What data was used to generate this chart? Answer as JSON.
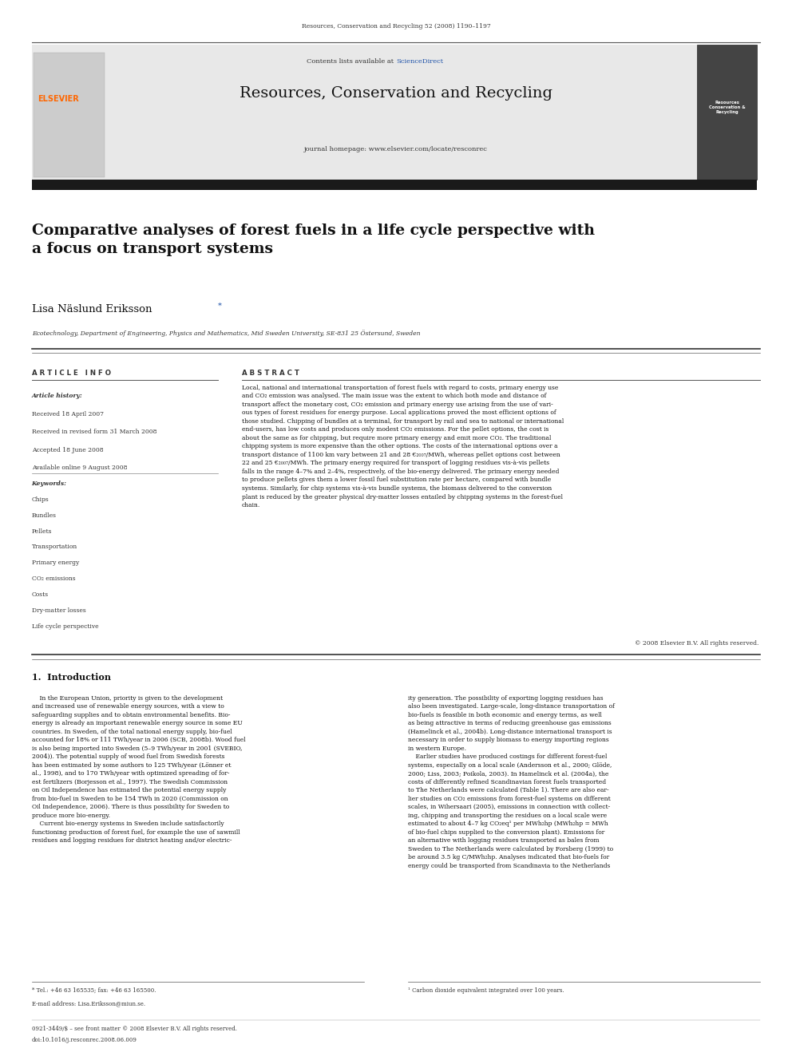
{
  "page_width": 9.92,
  "page_height": 13.23,
  "background_color": "#ffffff",
  "journal_ref": "Resources, Conservation and Recycling 52 (2008) 1190–1197",
  "header_bg": "#e8e8e8",
  "contents_text": "Contents lists available at ",
  "sciencedirect_text": "ScienceDirect",
  "sciencedirect_color": "#2255aa",
  "journal_title": "Resources, Conservation and Recycling",
  "journal_homepage": "journal homepage: www.elsevier.com/locate/resconrec",
  "elsevier_color": "#ff6600",
  "article_title": "Comparative analyses of forest fuels in a life cycle perspective with\na focus on transport systems",
  "author": "Lisa Näslund Eriksson",
  "author_star": "*",
  "affiliation": "Ecotechnology, Department of Engineering, Physics and Mathematics, Mid Sweden University, SE-831 25 Östersund, Sweden",
  "article_info_title": "A R T I C L E   I N F O",
  "abstract_title": "A B S T R A C T",
  "article_history_label": "Article history:",
  "received": "Received 18 April 2007",
  "revised": "Received in revised form 31 March 2008",
  "accepted": "Accepted 18 June 2008",
  "available": "Available online 9 August 2008",
  "keywords_label": "Keywords:",
  "keywords": [
    "Chips",
    "Bundles",
    "Pellets",
    "Transportation",
    "Primary energy",
    "CO₂ emissions",
    "Costs",
    "Dry-matter losses",
    "Life cycle perspective"
  ],
  "abstract_text": "Local, national and international transportation of forest fuels with regard to costs, primary energy use\nand CO₂ emission was analysed. The main issue was the extent to which both mode and distance of\ntransport affect the monetary cost, CO₂ emission and primary energy use arising from the use of vari-\nous types of forest residues for energy purpose. Local applications proved the most efficient options of\nthose studied. Chipping of bundles at a terminal, for transport by rail and sea to national or international\nend-users, has low costs and produces only modest CO₂ emissions. For the pellet options, the cost is\nabout the same as for chipping, but require more primary energy and emit more CO₂. The traditional\nchipping system is more expensive than the other options. The costs of the international options over a\ntransport distance of 1100 km vary between 21 and 28 €₂₀₀₇/MWh, whereas pellet options cost between\n22 and 25 €₂₀₀₇/MWh. The primary energy required for transport of logging residues vis-à-vis pellets\nfalls in the range 4–7% and 2–4%, respectively, of the bio-energy delivered. The primary energy needed\nto produce pellets gives them a lower fossil fuel substitution rate per hectare, compared with bundle\nsystems. Similarly, for chip systems vis-à-vis bundle systems, the biomass delivered to the conversion\nplant is reduced by the greater physical dry-matter losses entailed by chipping systems in the forest-fuel\nchain.",
  "copyright_text": "© 2008 Elsevier B.V. All rights reserved.",
  "section1_title": "1.  Introduction",
  "intro_col1": "    In the European Union, priority is given to the development\nand increased use of renewable energy sources, with a view to\nsafeguarding supplies and to obtain environmental benefits. Bio-\nenergy is already an important renewable energy source in some EU\ncountries. In Sweden, of the total national energy supply, bio-fuel\naccounted for 18% or 111 TWh/year in 2006 (SCB, 2008b). Wood fuel\nis also being imported into Sweden (5–9 TWh/year in 2001 (SVEBIO,\n2004)). The potential supply of wood fuel from Swedish forests\nhas been estimated by some authors to 125 TWh/year (Lönner et\nal., 1998), and to 170 TWh/year with optimized spreading of for-\nest fertilizers (Borjesson et al., 1997). The Swedish Commission\non Oil Independence has estimated the potential energy supply\nfrom bio-fuel in Sweden to be 154 TWh in 2020 (Commission on\nOil Independence, 2006). There is thus possibility for Sweden to\nproduce more bio-energy.\n    Current bio-energy systems in Sweden include satisfactorily\nfunctioning production of forest fuel, for example the use of sawmill\nresidues and logging residues for district heating and/or electric-",
  "intro_col2": "ity generation. The possibility of exporting logging residues has\nalso been investigated. Large-scale, long-distance transportation of\nbio-fuels is feasible in both economic and energy terms, as well\nas being attractive in terms of reducing greenhouse gas emissions\n(Hamelinck et al., 2004b). Long-distance international transport is\nnecessary in order to supply biomass to energy importing regions\nin western Europe.\n    Earlier studies have produced costings for different forest-fuel\nsystems, especially on a local scale (Andersson et al., 2000; Glöde,\n2000; Liss, 2003; Poikola, 2003). In Hamelinck et al. (2004a), the\ncosts of differently refined Scandinavian forest fuels transported\nto The Netherlands were calculated (Table 1). There are also ear-\nlier studies on CO₂ emissions from forest-fuel systems on different\nscales, in Wihersaari (2005), emissions in connection with collect-\ning, chipping and transporting the residues on a local scale were\nestimated to about 4–7 kg CO₂eq¹ per MWh₂hp (MWh₂hp = MWh\nof bio-fuel chips supplied to the conversion plant). Emissions for\nan alternative with logging residues transported as bales from\nSweden to The Netherlands were calculated by Forsberg (1999) to\nbe around 3.5 kg C/MWh₂hp. Analyses indicated that bio-fuels for\nenergy could be transported from Scandinavia to the Netherlands",
  "footnote_star": "* Tel.: +46 63 165535; fax: +46 63 165500.",
  "footnote_email": "E-mail address: Lisa.Eriksson@miun.se.",
  "footnote1": "¹ Carbon dioxide equivalent integrated over 100 years.",
  "issn_text": "0921-3449/$ – see front matter © 2008 Elsevier B.V. All rights reserved.",
  "doi_text": "doi:10.1016/j.resconrec.2008.06.009"
}
